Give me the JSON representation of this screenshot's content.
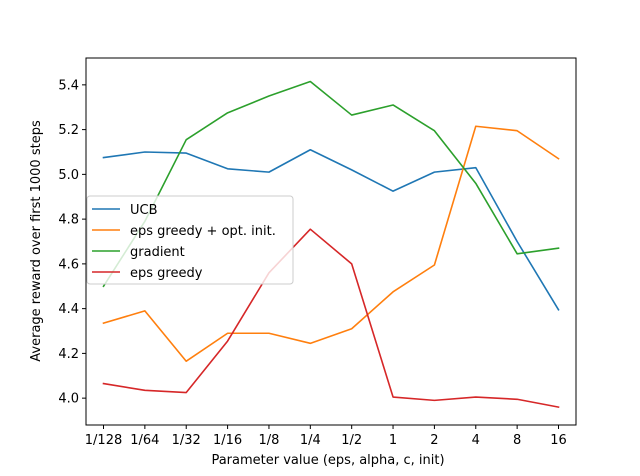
{
  "chart_data": {
    "type": "line",
    "xlabel": "Parameter value (eps, alpha, c, init)",
    "ylabel": "Average reward over first 1000 steps",
    "categories": [
      "1/128",
      "1/64",
      "1/32",
      "1/16",
      "1/8",
      "1/4",
      "1/2",
      "1",
      "2",
      "4",
      "8",
      "16"
    ],
    "ylim": [
      3.88,
      5.52
    ],
    "yticks": [
      4.0,
      4.2,
      4.4,
      4.6,
      4.8,
      5.0,
      5.2,
      5.4
    ],
    "ytick_labels": [
      "4.0",
      "4.2",
      "4.4",
      "4.6",
      "4.8",
      "5.0",
      "5.2",
      "5.4"
    ],
    "grid": false,
    "legend_position": "center-left",
    "series": [
      {
        "name": "UCB",
        "color": "#1f77b4",
        "x_start": 0,
        "values": [
          5.075,
          5.1,
          5.095,
          5.025,
          5.01,
          5.11,
          5.02,
          4.925,
          5.01,
          5.03,
          4.7,
          4.395
        ]
      },
      {
        "name": "eps greedy + opt. init.",
        "color": "#ff7f0e",
        "x_start": 0,
        "values": [
          4.335,
          4.39,
          4.165,
          4.29,
          4.29,
          4.245,
          4.31,
          4.475,
          4.595,
          5.215,
          5.195,
          5.07
        ]
      },
      {
        "name": "gradient",
        "color": "#2ca02c",
        "x_start": 0,
        "values": [
          4.5,
          4.79,
          5.155,
          5.275,
          5.35,
          5.415,
          5.265,
          5.31,
          5.195,
          4.96,
          4.645,
          4.67
        ]
      },
      {
        "name": "eps greedy",
        "color": "#d62728",
        "x_start": 0,
        "values": [
          4.065,
          4.035,
          4.025,
          4.255,
          4.56,
          4.755,
          4.6,
          4.005,
          3.99,
          4.005,
          3.995,
          3.96
        ]
      }
    ]
  }
}
